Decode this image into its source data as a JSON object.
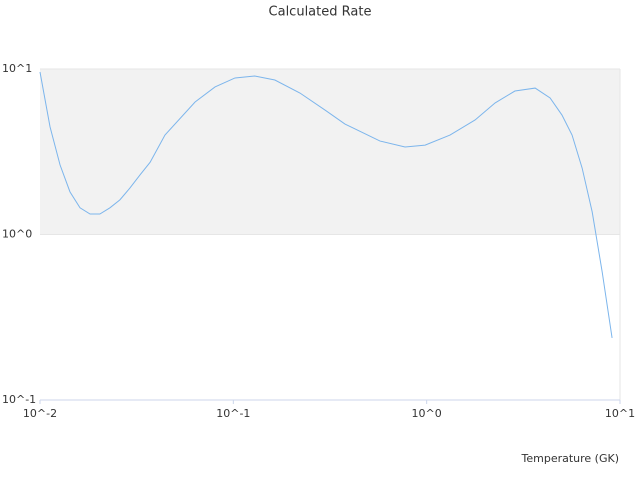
{
  "chart_data": {
    "type": "line",
    "title": "Calculated Rate",
    "x_label": "Temperature (GK)",
    "x": [
      0.01,
      0.01127,
      0.0127,
      0.01429,
      0.0161,
      0.01815,
      0.0204,
      0.023,
      0.0259,
      0.0292,
      0.0329,
      0.0371,
      0.0443,
      0.0634,
      0.0804,
      0.102,
      0.129,
      0.164,
      0.221,
      0.298,
      0.378,
      0.574,
      0.773,
      0.982,
      1.32,
      1.78,
      2.26,
      2.86,
      3.64,
      4.35,
      5.01,
      5.65,
      6.37,
      7.18,
      8.09,
      9.1
    ],
    "values": [
      9.59,
      4.47,
      2.63,
      1.81,
      1.45,
      1.33,
      1.33,
      1.45,
      1.62,
      1.91,
      2.29,
      2.73,
      3.99,
      6.32,
      7.79,
      8.83,
      9.07,
      8.58,
      7.16,
      5.65,
      4.65,
      3.67,
      3.38,
      3.47,
      3.99,
      4.92,
      6.24,
      7.36,
      7.67,
      6.68,
      5.27,
      3.99,
      2.52,
      1.37,
      0.593,
      0.237
    ],
    "color": "#7cb5ec",
    "xscale": "log",
    "yscale": "log",
    "xlim": [
      0.01,
      10
    ],
    "ylim": [
      0.1,
      10
    ],
    "xticks": [
      {
        "value": 0.01,
        "label": "10^-2"
      },
      {
        "value": 0.1,
        "label": "10^-1"
      },
      {
        "value": 1,
        "label": "10^0"
      },
      {
        "value": 10,
        "label": "10^1"
      }
    ],
    "yticks": [
      {
        "value": 0.1,
        "label": "10^-1"
      },
      {
        "value": 1,
        "label": "10^0"
      },
      {
        "value": 10,
        "label": "10^1"
      }
    ],
    "grid": true,
    "alternate_band_color": "#f2f2f2"
  }
}
